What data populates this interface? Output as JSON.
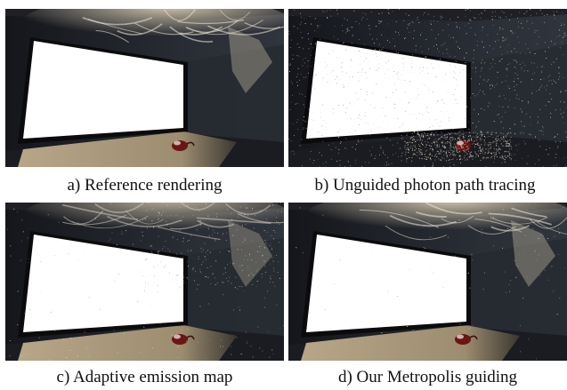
{
  "panels": [
    {
      "id": "a",
      "caption": "a) Reference rendering",
      "noise": "none",
      "caustic": "smooth"
    },
    {
      "id": "b",
      "caption": "b) Unguided photon path tracing",
      "noise": "heavy",
      "caustic": "none"
    },
    {
      "id": "c",
      "caption": "c) Adaptive emission map",
      "noise": "medium",
      "caustic": "partial"
    },
    {
      "id": "d",
      "caption": "d) Our Metropolis guiding",
      "noise": "light",
      "caustic": "smooth"
    }
  ],
  "colors": {
    "wall": "#2a2e36",
    "wall_dark": "#14161b",
    "window": "#ffffff",
    "window_frame": "#0b0b0d",
    "floor_light": "#b7a688",
    "floor_shadow": "#1a1c21",
    "caustic": "#d9cdb4"
  }
}
